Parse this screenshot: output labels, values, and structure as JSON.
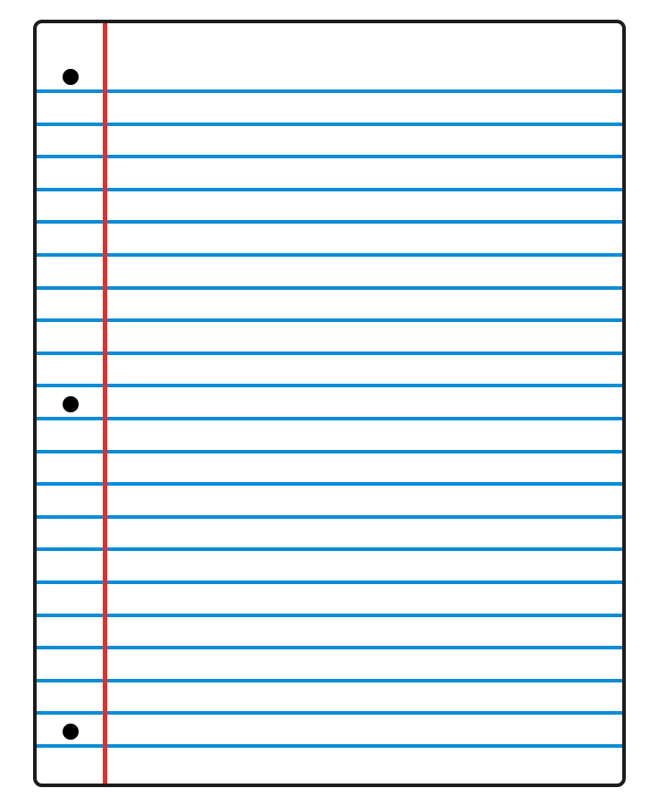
{
  "paper": {
    "background_color": "#ffffff",
    "border_color": "#1c1c1c",
    "rule_color": "#0a8cd6",
    "margin_color": "#e0302a",
    "hole_color": "#000000",
    "ruled_line_count": 21,
    "punch_hole_count": 3
  }
}
